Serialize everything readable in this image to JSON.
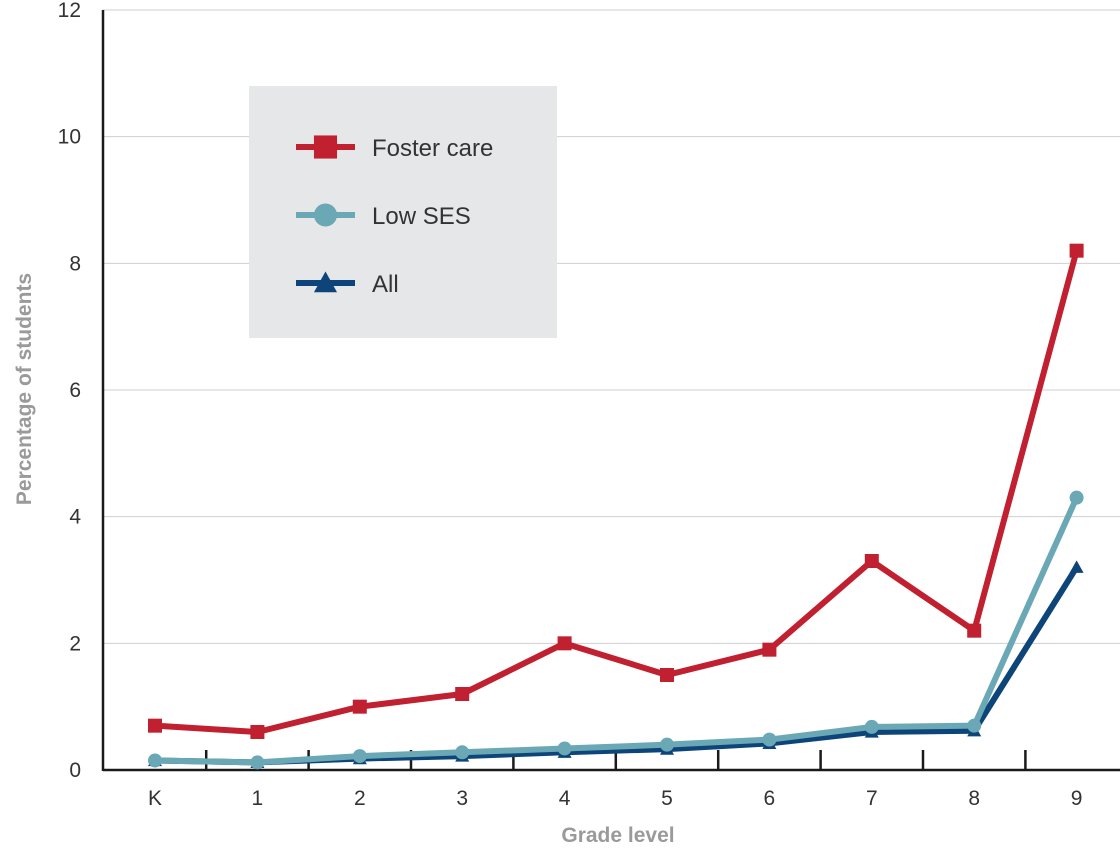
{
  "chart_data": {
    "type": "line",
    "xlabel": "Grade level",
    "ylabel": "Percentage of students",
    "categories": [
      "K",
      "1",
      "2",
      "3",
      "4",
      "5",
      "6",
      "7",
      "8",
      "9"
    ],
    "ylim": [
      0,
      12
    ],
    "yticks": [
      "0",
      "2",
      "4",
      "6",
      "8",
      "10",
      "12"
    ],
    "grid": true,
    "legend_position": "top-left",
    "series": [
      {
        "name": "Foster care",
        "color": "#c0202f",
        "marker": "square",
        "values": [
          0.7,
          0.6,
          1.0,
          1.2,
          2.0,
          1.5,
          1.9,
          3.3,
          2.2,
          8.2
        ]
      },
      {
        "name": "Low SES",
        "color": "#6aa8b5",
        "marker": "circle",
        "values": [
          0.15,
          0.12,
          0.22,
          0.28,
          0.34,
          0.4,
          0.48,
          0.68,
          0.7,
          4.3
        ]
      },
      {
        "name": "All",
        "color": "#0d4479",
        "marker": "triangle",
        "values": [
          0.15,
          0.12,
          0.18,
          0.22,
          0.28,
          0.33,
          0.42,
          0.6,
          0.62,
          3.2
        ]
      }
    ]
  }
}
